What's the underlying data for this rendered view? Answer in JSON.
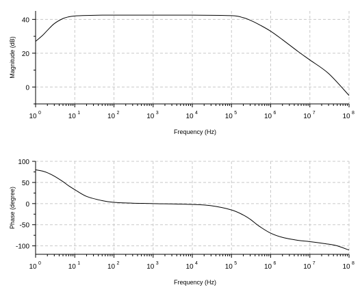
{
  "chart_data": [
    {
      "type": "line",
      "xlabel": "Frequency (Hz)",
      "ylabel": "Magnitude (dB)",
      "xscale": "log",
      "xlim": [
        1,
        100000000
      ],
      "ylim": [
        -10,
        45
      ],
      "xticks": [
        {
          "base": "10",
          "exp": "0",
          "value": 1
        },
        {
          "base": "10",
          "exp": "1",
          "value": 10
        },
        {
          "base": "10",
          "exp": "2",
          "value": 100
        },
        {
          "base": "10",
          "exp": "3",
          "value": 1000
        },
        {
          "base": "10",
          "exp": "4",
          "value": 10000
        },
        {
          "base": "10",
          "exp": "5",
          "value": 100000
        },
        {
          "base": "10",
          "exp": "6",
          "value": 1000000
        },
        {
          "base": "10",
          "exp": "7",
          "value": 10000000
        },
        {
          "base": "10",
          "exp": "8",
          "value": 100000000
        }
      ],
      "yticks": [
        0,
        20,
        40
      ],
      "grid": true,
      "series": [
        {
          "x": [
            1,
            1.5,
            2,
            3,
            5,
            7,
            10,
            20,
            50,
            100,
            1000,
            10000,
            100000,
            200000,
            300000,
            500000,
            1000000,
            2000000,
            5000000,
            10000000,
            30000000,
            100000000
          ],
          "y": [
            27,
            30.5,
            33.5,
            37.5,
            40.5,
            41.5,
            42,
            42.3,
            42.5,
            42.5,
            42.5,
            42.5,
            42.2,
            41,
            39.5,
            37,
            33,
            28,
            21,
            16,
            8,
            -5
          ]
        }
      ]
    },
    {
      "type": "line",
      "xlabel": "Frequency (Hz)",
      "ylabel": "Phase (degree)",
      "xscale": "log",
      "xlim": [
        1,
        100000000
      ],
      "ylim": [
        -120,
        100
      ],
      "xticks": [
        {
          "base": "10",
          "exp": "0",
          "value": 1
        },
        {
          "base": "10",
          "exp": "1",
          "value": 10
        },
        {
          "base": "10",
          "exp": "2",
          "value": 100
        },
        {
          "base": "10",
          "exp": "3",
          "value": 1000
        },
        {
          "base": "10",
          "exp": "4",
          "value": 10000
        },
        {
          "base": "10",
          "exp": "5",
          "value": 100000
        },
        {
          "base": "10",
          "exp": "6",
          "value": 1000000
        },
        {
          "base": "10",
          "exp": "7",
          "value": 10000000
        },
        {
          "base": "10",
          "exp": "8",
          "value": 100000000
        }
      ],
      "yticks": [
        -100,
        -50,
        0,
        50,
        100
      ],
      "grid": true,
      "series": [
        {
          "x": [
            1,
            1.5,
            2,
            3,
            5,
            7,
            10,
            20,
            50,
            100,
            300,
            1000,
            10000,
            30000,
            100000,
            200000,
            300000,
            500000,
            1000000,
            2000000,
            5000000,
            10000000,
            30000000,
            50000000,
            100000000
          ],
          "y": [
            80,
            77,
            73,
            65,
            52,
            42,
            33,
            17,
            7,
            3,
            1,
            0,
            -2,
            -5,
            -15,
            -27,
            -37,
            -53,
            -70,
            -80,
            -87,
            -90,
            -96,
            -100,
            -110
          ]
        }
      ]
    }
  ]
}
